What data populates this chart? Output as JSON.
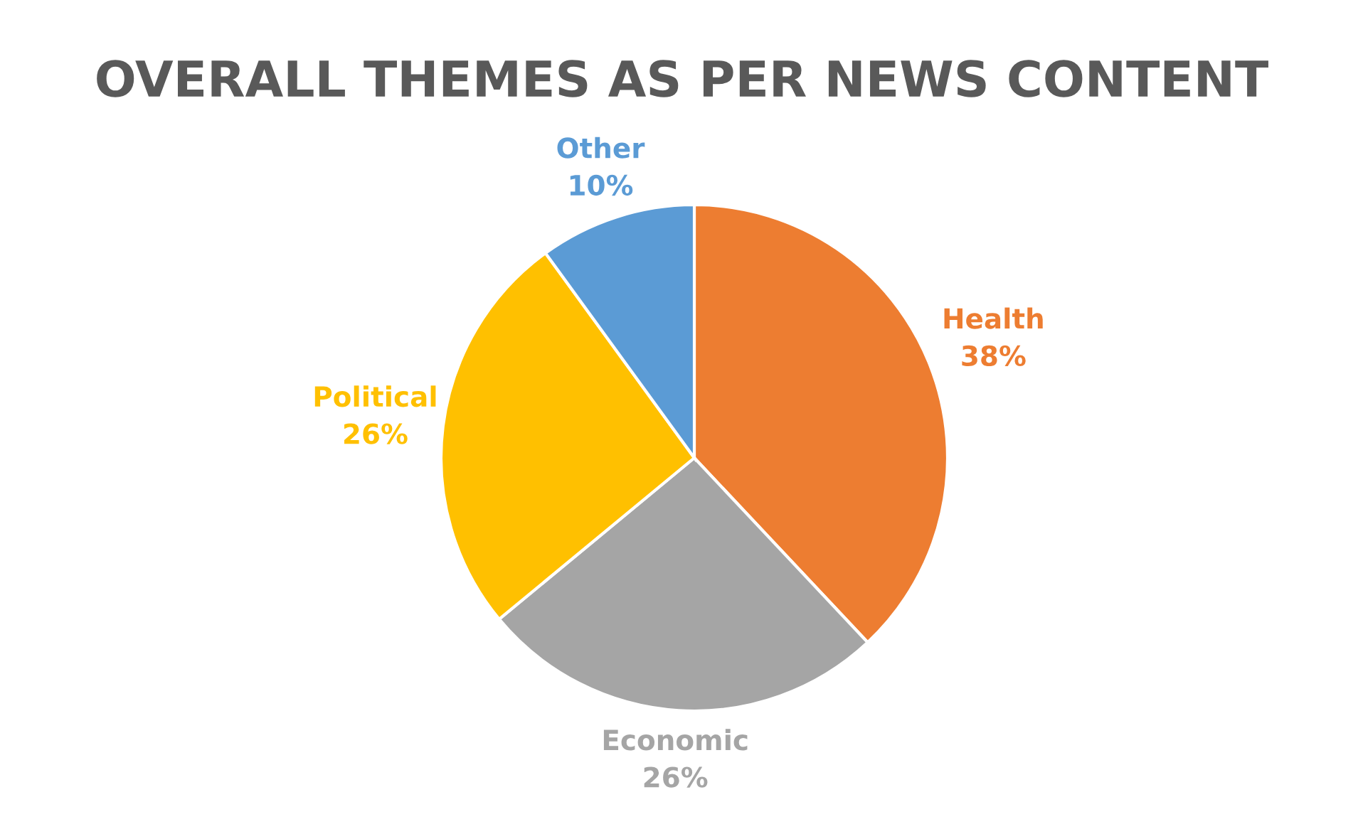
{
  "chart_data": {
    "type": "pie",
    "title": "OVERALL THEMES AS PER NEWS CONTENT",
    "categories": [
      "Health",
      "Economic",
      "Political",
      "Other"
    ],
    "values": [
      38,
      26,
      26,
      10
    ],
    "value_labels": [
      "38%",
      "26%",
      "26%",
      "10%"
    ],
    "colors": [
      "#ed7d31",
      "#a5a5a5",
      "#ffc000",
      "#5b9bd5"
    ],
    "legend": false
  }
}
